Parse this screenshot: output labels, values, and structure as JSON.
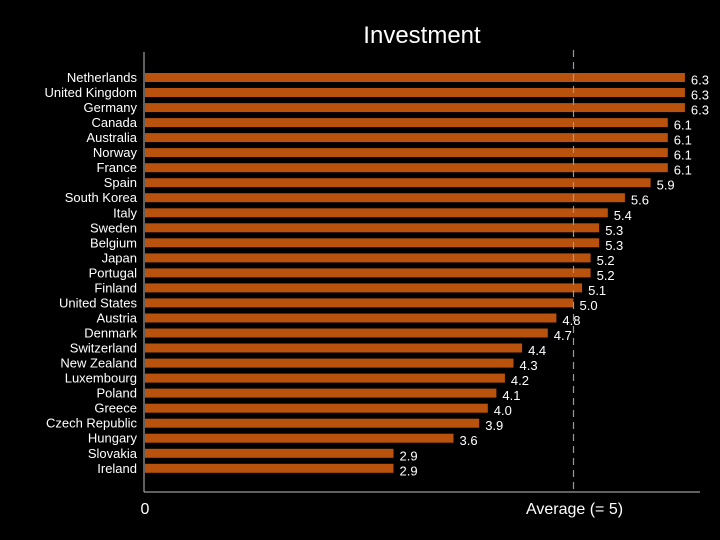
{
  "chart_data": {
    "type": "bar",
    "orientation": "horizontal",
    "title": "Investment",
    "xlabel": "",
    "ylabel": "",
    "categories": [
      "Netherlands",
      "United Kingdom",
      "Germany",
      "Canada",
      "Australia",
      "Norway",
      "France",
      "Spain",
      "South Korea",
      "Italy",
      "Sweden",
      "Belgium",
      "Japan",
      "Portugal",
      "Finland",
      "United States",
      "Austria",
      "Denmark",
      "Switzerland",
      "New Zealand",
      "Luxembourg",
      "Poland",
      "Greece",
      "Czech Republic",
      "Hungary",
      "Slovakia",
      "Ireland"
    ],
    "values": [
      6.3,
      6.3,
      6.3,
      6.1,
      6.1,
      6.1,
      6.1,
      5.9,
      5.6,
      5.4,
      5.3,
      5.3,
      5.2,
      5.2,
      5.1,
      5.0,
      4.8,
      4.7,
      4.4,
      4.3,
      4.2,
      4.1,
      4.0,
      3.9,
      3.6,
      2.9,
      2.9
    ],
    "value_labels": [
      "6.3",
      "6.3",
      "6.3",
      "6.1",
      "6.1",
      "6.1",
      "6.1",
      "5.9",
      "5.6",
      "5.4",
      "5.3",
      "5.3",
      "5.2",
      "5.2",
      "5.1",
      "5.0",
      "4.8",
      "4.7",
      "4.4",
      "4.3",
      "4.2",
      "4.1",
      "4.0",
      "3.9",
      "3.6",
      "2.9",
      "2.9"
    ],
    "xlim": [
      0,
      6.5
    ],
    "x_tick_left_label": "0",
    "reference_line": {
      "value": 5,
      "label": "Average (= 5)",
      "style": "dashed"
    },
    "bar_color": "#b8520d",
    "background_color": "#000000",
    "text_color": "#ffffff",
    "grid": false,
    "legend": "none"
  }
}
